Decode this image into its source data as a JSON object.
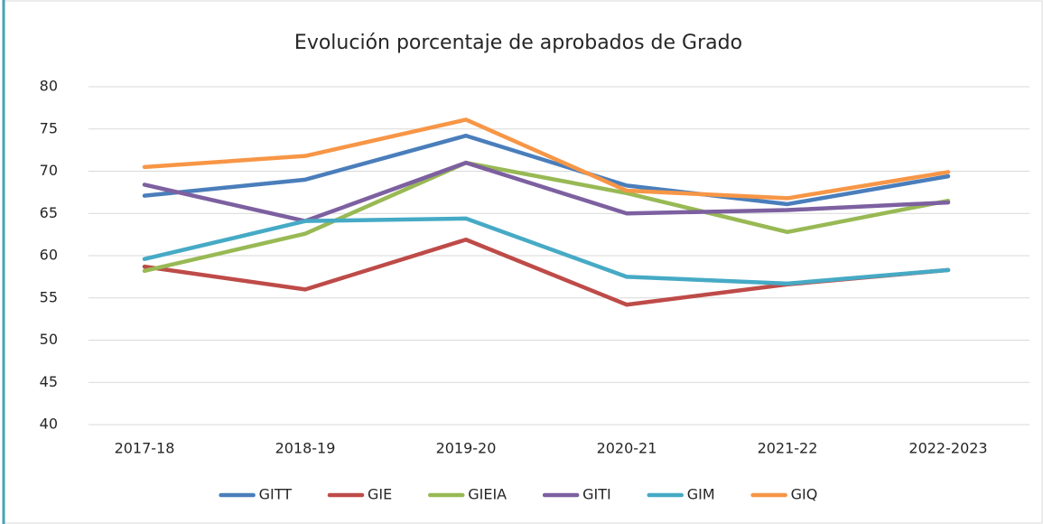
{
  "chart_data": {
    "type": "line",
    "title": "Evolución porcentaje de aprobados de Grado",
    "categories": [
      "2017-18",
      "2018-19",
      "2019-20",
      "2020-21",
      "2021-22",
      "2022-2023"
    ],
    "series": [
      {
        "name": "GITT",
        "color": "#4a7ebb",
        "values": [
          67.1,
          69.0,
          74.2,
          68.3,
          66.1,
          69.4
        ]
      },
      {
        "name": "GIE",
        "color": "#be4b48",
        "values": [
          58.7,
          56.0,
          61.9,
          54.2,
          56.6,
          58.3
        ]
      },
      {
        "name": "GIEIA",
        "color": "#98b954",
        "values": [
          58.2,
          62.6,
          71.0,
          67.4,
          62.8,
          66.5
        ]
      },
      {
        "name": "GITI",
        "color": "#7d60a0",
        "values": [
          68.4,
          64.1,
          71.0,
          65.0,
          65.4,
          66.3
        ]
      },
      {
        "name": "GIM",
        "color": "#46aac5",
        "values": [
          59.6,
          64.1,
          64.4,
          57.5,
          56.7,
          58.3
        ]
      },
      {
        "name": "GIQ",
        "color": "#f79646",
        "values": [
          70.5,
          71.8,
          76.1,
          67.7,
          66.8,
          69.9
        ]
      }
    ],
    "ylim": [
      40,
      80
    ],
    "yticks": [
      40,
      45,
      50,
      55,
      60,
      65,
      70,
      75,
      80
    ],
    "grid": true,
    "legend": "bottom"
  }
}
